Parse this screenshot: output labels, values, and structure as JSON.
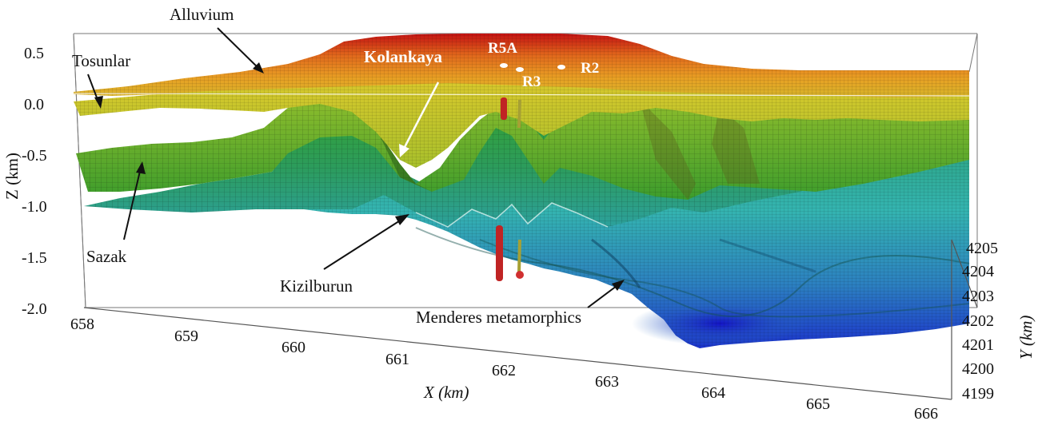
{
  "axes": {
    "z": {
      "label": "Z (km)",
      "ticks": [
        "0.5",
        "0.0",
        "-0.5",
        "-1.0",
        "-1.5",
        "-2.0"
      ]
    },
    "x": {
      "label": "X (km)",
      "ticks": [
        "658",
        "659",
        "660",
        "661",
        "662",
        "663",
        "664",
        "665",
        "666"
      ]
    },
    "y": {
      "label": "Y (km)",
      "ticks": [
        "4205",
        "4204",
        "4203",
        "4202",
        "4201",
        "4200",
        "4199"
      ]
    }
  },
  "formations": {
    "alluvium": "Alluvium",
    "tosunlar": "Tosunlar",
    "kolankaya": "Kolankaya",
    "sazak": "Sazak",
    "kizilburun": "Kizilburun",
    "menderes": "Menderes metamorphics"
  },
  "wells": [
    "R5A",
    "R3",
    "R2"
  ],
  "colors": {
    "red": "#c81414",
    "orange": "#e8a024",
    "yellow": "#d8d02c",
    "green": "#3c9c2c",
    "cyan": "#3cb4b0",
    "blue": "#1c3ccc",
    "well_red": "#c02424",
    "well_olive": "#a6a034"
  }
}
